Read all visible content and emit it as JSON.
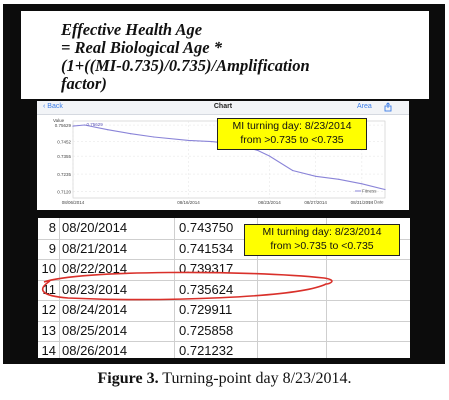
{
  "formula": {
    "line1": "Effective Health Age",
    "line2": "= Real Biological Age *",
    "line3": "(1+((MI-0.735)/0.735)/Amplification",
    "line4": "factor)"
  },
  "app": {
    "back_label": "Back",
    "title": "Chart",
    "area_label": "Area",
    "share_icon": "share-icon"
  },
  "callout_text": {
    "line1": "MI turning day: 8/23/2014",
    "line2": "from >0.735 to <0.735"
  },
  "chart_data": {
    "type": "line",
    "ylabel": "Value",
    "yticks": [
      "0.75629",
      "0.7452",
      "0.7355",
      "0.7235",
      "0.7120"
    ],
    "xticks": [
      "08/06/2014",
      "08/16/2014",
      "08/23/2014",
      "08/27/2014",
      "08/31/2014"
    ],
    "peak_label": "0.75629",
    "legend": [
      "Fitness",
      "Date"
    ],
    "ylim": [
      0.7075,
      0.759
    ],
    "grid": true,
    "line_color": "#8a84d8",
    "series": [
      {
        "values": [
          {
            "x": "08/06/2014",
            "y": 0.7556
          },
          {
            "x": "08/07/2014",
            "y": 0.7563
          },
          {
            "x": "08/09/2014",
            "y": 0.7532
          },
          {
            "x": "08/11/2014",
            "y": 0.7505
          },
          {
            "x": "08/13/2014",
            "y": 0.7483
          },
          {
            "x": "08/16/2014",
            "y": 0.746
          },
          {
            "x": "08/18/2014",
            "y": 0.7452
          },
          {
            "x": "08/20/2014",
            "y": 0.7437
          },
          {
            "x": "08/22/2014",
            "y": 0.7393
          },
          {
            "x": "08/23/2014",
            "y": 0.7356
          },
          {
            "x": "08/25/2014",
            "y": 0.7259
          },
          {
            "x": "08/27/2014",
            "y": 0.722
          },
          {
            "x": "08/29/2014",
            "y": 0.72
          },
          {
            "x": "08/31/2014",
            "y": 0.717
          },
          {
            "x": "09/02/2014",
            "y": 0.7132
          }
        ]
      }
    ]
  },
  "table": {
    "rows": [
      {
        "idx": "8",
        "date": "08/20/2014",
        "value": "0.743750"
      },
      {
        "idx": "9",
        "date": "08/21/2014",
        "value": "0.741534"
      },
      {
        "idx": "10",
        "date": "08/22/2014",
        "value": "0.739317"
      },
      {
        "idx": "11",
        "date": "08/23/2014",
        "value": "0.735624"
      },
      {
        "idx": "12",
        "date": "08/24/2014",
        "value": "0.729911"
      },
      {
        "idx": "13",
        "date": "08/25/2014",
        "value": "0.725858"
      },
      {
        "idx": "14",
        "date": "08/26/2014",
        "value": "0.721232"
      }
    ],
    "highlight_color": "#d9302a"
  },
  "caption": {
    "label": "Figure 3.",
    "text": " Turning-point day 8/23/2014."
  }
}
